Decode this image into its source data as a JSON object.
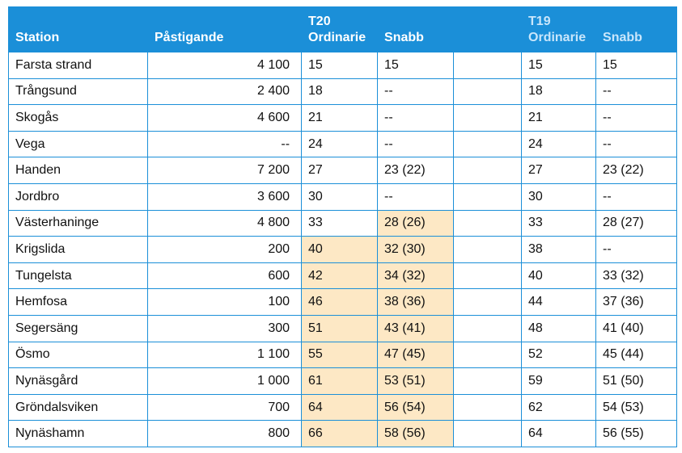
{
  "headers": {
    "station": "Station",
    "boarding": "Påstigande",
    "t20": "T20",
    "t19": "T19",
    "ordinarie": "Ordinarie",
    "snabb": "Snabb"
  },
  "highlight_color": "#fde8c5",
  "header_color": "#1b8fd8",
  "rows": [
    {
      "station": "Farsta strand",
      "boarding": "4 100",
      "t20_ord": "15",
      "t20_snabb": "15",
      "t19_ord": "15",
      "t19_snabb": "15",
      "hl_ord": false,
      "hl_snabb": false
    },
    {
      "station": "Trångsund",
      "boarding": "2 400",
      "t20_ord": "18",
      "t20_snabb": "--",
      "t19_ord": "18",
      "t19_snabb": "--",
      "hl_ord": false,
      "hl_snabb": false
    },
    {
      "station": "Skogås",
      "boarding": "4 600",
      "t20_ord": "21",
      "t20_snabb": "--",
      "t19_ord": "21",
      "t19_snabb": "--",
      "hl_ord": false,
      "hl_snabb": false
    },
    {
      "station": "Vega",
      "boarding": "--",
      "t20_ord": "24",
      "t20_snabb": "--",
      "t19_ord": "24",
      "t19_snabb": "--",
      "hl_ord": false,
      "hl_snabb": false
    },
    {
      "station": "Handen",
      "boarding": "7 200",
      "t20_ord": "27",
      "t20_snabb": "23 (22)",
      "t19_ord": "27",
      "t19_snabb": "23 (22)",
      "hl_ord": false,
      "hl_snabb": false
    },
    {
      "station": "Jordbro",
      "boarding": "3 600",
      "t20_ord": "30",
      "t20_snabb": "--",
      "t19_ord": "30",
      "t19_snabb": "--",
      "hl_ord": false,
      "hl_snabb": false
    },
    {
      "station": "Västerhaninge",
      "boarding": "4 800",
      "t20_ord": "33",
      "t20_snabb": "28 (26)",
      "t19_ord": "33",
      "t19_snabb": "28 (27)",
      "hl_ord": false,
      "hl_snabb": true
    },
    {
      "station": "Krigslida",
      "boarding": "200",
      "t20_ord": "40",
      "t20_snabb": "32 (30)",
      "t19_ord": "38",
      "t19_snabb": "--",
      "hl_ord": true,
      "hl_snabb": true
    },
    {
      "station": "Tungelsta",
      "boarding": "600",
      "t20_ord": "42",
      "t20_snabb": "34 (32)",
      "t19_ord": "40",
      "t19_snabb": "33 (32)",
      "hl_ord": true,
      "hl_snabb": true
    },
    {
      "station": "Hemfosa",
      "boarding": "100",
      "t20_ord": "46",
      "t20_snabb": "38 (36)",
      "t19_ord": "44",
      "t19_snabb": "37 (36)",
      "hl_ord": true,
      "hl_snabb": true
    },
    {
      "station": "Segersäng",
      "boarding": "300",
      "t20_ord": "51",
      "t20_snabb": "43 (41)",
      "t19_ord": "48",
      "t19_snabb": "41 (40)",
      "hl_ord": true,
      "hl_snabb": true
    },
    {
      "station": "Ösmo",
      "boarding": "1 100",
      "t20_ord": "55",
      "t20_snabb": "47 (45)",
      "t19_ord": "52",
      "t19_snabb": "45 (44)",
      "hl_ord": true,
      "hl_snabb": true
    },
    {
      "station": "Nynäsgård",
      "boarding": "1 000",
      "t20_ord": "61",
      "t20_snabb": "53 (51)",
      "t19_ord": "59",
      "t19_snabb": "51 (50)",
      "hl_ord": true,
      "hl_snabb": true
    },
    {
      "station": "Gröndalsviken",
      "boarding": "700",
      "t20_ord": "64",
      "t20_snabb": "56 (54)",
      "t19_ord": "62",
      "t19_snabb": "54 (53)",
      "hl_ord": true,
      "hl_snabb": true
    },
    {
      "station": "Nynäshamn",
      "boarding": "800",
      "t20_ord": "66",
      "t20_snabb": "58 (56)",
      "t19_ord": "64",
      "t19_snabb": "56 (55)",
      "hl_ord": true,
      "hl_snabb": true
    }
  ]
}
